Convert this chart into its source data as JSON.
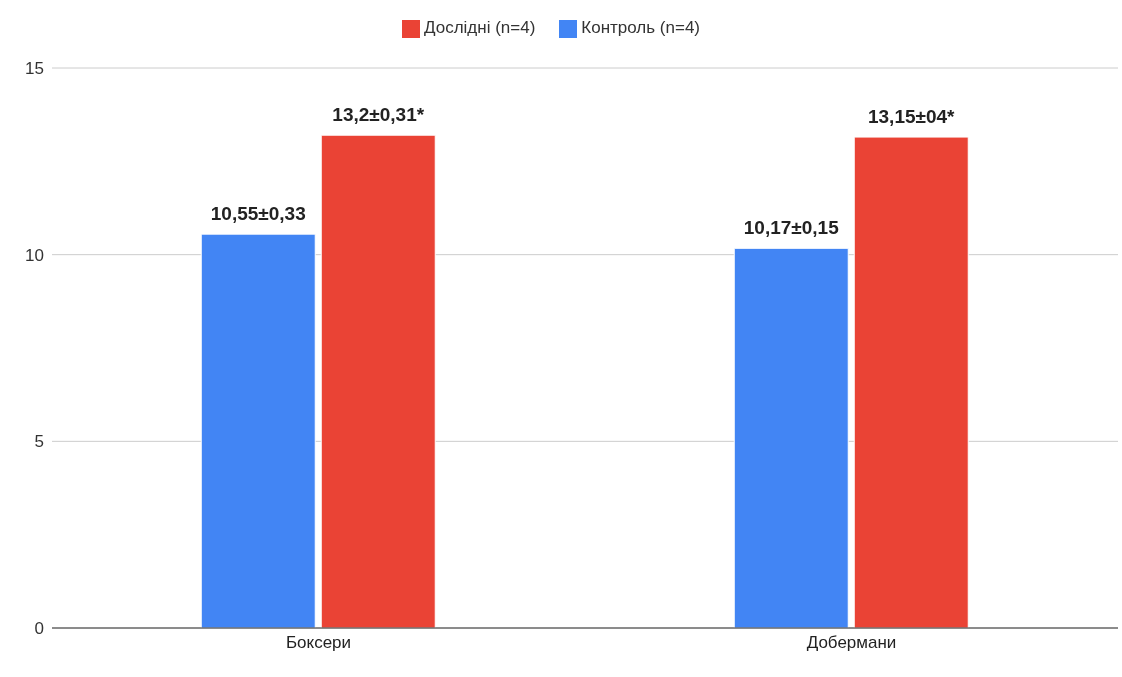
{
  "chart_data": {
    "type": "bar",
    "categories": [
      "Боксери",
      "Добермани"
    ],
    "series": [
      {
        "name": "Контроль (n=4)",
        "color": "#4285f4",
        "values": [
          10.55,
          10.17
        ],
        "value_labels": [
          "10,55±0,33",
          "10,17±0,15"
        ]
      },
      {
        "name": "Дослідні (n=4)",
        "color": "#ea4335",
        "values": [
          13.2,
          13.15
        ],
        "value_labels": [
          "13,2±0,31*",
          "13,15±04*"
        ]
      }
    ],
    "ylim": [
      0,
      15
    ],
    "yticks": [
      0,
      5,
      10,
      15
    ],
    "grid": "y",
    "legend": "top"
  }
}
